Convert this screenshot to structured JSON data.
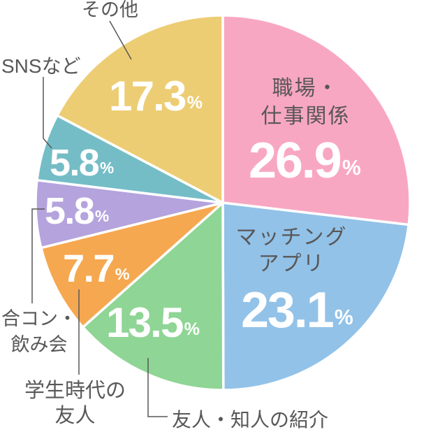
{
  "chart_data": {
    "type": "pie",
    "unit": "%",
    "start_angle_deg": 0,
    "direction": "clockwise",
    "text_color": "#595757",
    "percent_color": "#FFFFFF",
    "separator_color": "#FFFFFF",
    "slices": [
      {
        "label": "職場・仕事関係",
        "label_lines": [
          "職場・",
          "仕事関係"
        ],
        "value": 26.9,
        "display": "26.9",
        "color": "#F8A7C3",
        "label_placement": "inside"
      },
      {
        "label": "マッチングアプリ",
        "label_lines": [
          "マッチング",
          "アプリ"
        ],
        "value": 23.1,
        "display": "23.1",
        "color": "#92C2E8",
        "label_placement": "inside"
      },
      {
        "label": "友人・知人の紹介",
        "label_lines": [
          "友人・知人の紹介"
        ],
        "value": 13.5,
        "display": "13.5",
        "color": "#8FD595",
        "label_placement": "outside"
      },
      {
        "label": "学生時代の友人",
        "label_lines": [
          "学生時代の",
          "友人"
        ],
        "value": 7.7,
        "display": "7.7",
        "color": "#F6A850",
        "label_placement": "outside"
      },
      {
        "label": "合コン・飲み会",
        "label_lines": [
          "合コン・",
          "飲み会"
        ],
        "value": 5.8,
        "display": "5.8",
        "color": "#B4A3DD",
        "label_placement": "outside"
      },
      {
        "label": "SNSなど",
        "label_lines": [
          "SNSなど"
        ],
        "value": 5.8,
        "display": "5.8",
        "color": "#74BDC7",
        "label_placement": "outside"
      },
      {
        "label": "その他",
        "label_lines": [
          "その他"
        ],
        "value": 17.3,
        "display": "17.3",
        "color": "#EDCD74",
        "label_placement": "outside"
      }
    ]
  }
}
